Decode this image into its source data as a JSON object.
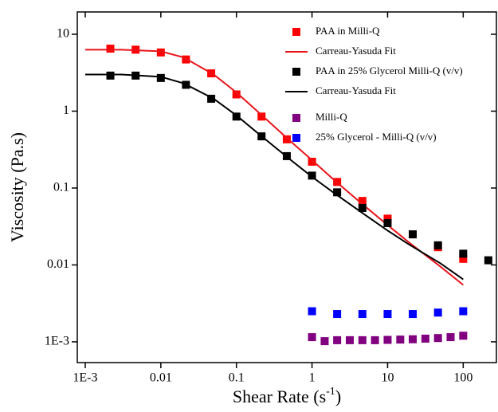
{
  "chart_data": {
    "type": "scatter",
    "log_x": true,
    "log_y": true,
    "xlim": [
      0.000785,
      275
    ],
    "ylim": [
      0.000537,
      19.5
    ],
    "xticks": [
      {
        "value": 0.001,
        "label": "1E-3"
      },
      0.01,
      0.1,
      1,
      10,
      100
    ],
    "yticks": [
      {
        "value": 0.001,
        "label": "1E-3"
      },
      0.01,
      0.1,
      1,
      10
    ],
    "xlabel": {
      "text": "Shear Rate (s",
      "superscript": "-1",
      "suffix": ")"
    },
    "ylabel": "Viscosity (Pa.s)",
    "legend": "upper right",
    "series": [
      {
        "name": "PAA in Milli-Q",
        "style": "marker",
        "color": "#ff0000",
        "x": [
          0.00215,
          0.00464,
          0.01,
          0.0215,
          0.0464,
          0.1,
          0.215,
          0.464,
          1,
          2.15,
          4.64,
          10,
          21.5,
          46.4,
          100
        ],
        "values": [
          6.5,
          6.3,
          5.8,
          4.7,
          3.1,
          1.65,
          0.85,
          0.43,
          0.22,
          0.12,
          0.068,
          0.04,
          0.025,
          0.017,
          0.012
        ]
      },
      {
        "name": "Carreau-Yasuda Fit",
        "style": "line",
        "color": "#e8141a",
        "x": [
          0.001,
          0.003,
          0.01,
          0.02,
          0.05,
          0.1,
          0.2,
          0.5,
          1,
          2,
          5,
          10,
          20,
          50,
          100
        ],
        "values": [
          6.3,
          6.3,
          6.0,
          5.0,
          3.0,
          1.75,
          0.95,
          0.42,
          0.23,
          0.125,
          0.058,
          0.033,
          0.019,
          0.0095,
          0.0055
        ]
      },
      {
        "name": "PAA in 25% Glycerol Milli-Q (v/v)",
        "style": "marker",
        "color": "#000000",
        "x": [
          0.00215,
          0.00464,
          0.01,
          0.0215,
          0.0464,
          0.1,
          0.215,
          0.464,
          1,
          2.15,
          4.64,
          10,
          21.5,
          46.4,
          100,
          215
        ],
        "values": [
          2.9,
          2.9,
          2.7,
          2.2,
          1.45,
          0.85,
          0.47,
          0.26,
          0.145,
          0.088,
          0.055,
          0.035,
          0.025,
          0.018,
          0.014,
          0.0115
        ]
      },
      {
        "name": "Carreau-Yasuda Fit",
        "style": "line",
        "color": "#000000",
        "x": [
          0.001,
          0.003,
          0.01,
          0.02,
          0.05,
          0.1,
          0.2,
          0.5,
          1,
          2,
          5,
          10,
          20,
          50,
          100
        ],
        "values": [
          3.0,
          3.0,
          2.8,
          2.3,
          1.45,
          0.88,
          0.5,
          0.24,
          0.14,
          0.085,
          0.045,
          0.028,
          0.018,
          0.0105,
          0.0065
        ]
      },
      {
        "name": "Milli-Q",
        "style": "marker",
        "color": "#800080",
        "x": [
          1,
          1.47,
          2.15,
          3.16,
          4.64,
          6.81,
          10,
          14.7,
          21.5,
          31.6,
          46.4,
          68.1,
          100
        ],
        "values": [
          0.00115,
          0.00102,
          0.00105,
          0.00105,
          0.00105,
          0.00105,
          0.00106,
          0.00107,
          0.00108,
          0.0011,
          0.00112,
          0.00115,
          0.0012
        ]
      },
      {
        "name": "25% Glycerol - Milli-Q (v/v)",
        "style": "marker",
        "color": "#0000ff",
        "x": [
          1,
          2.15,
          4.64,
          10,
          21.5,
          46.4,
          100
        ],
        "values": [
          0.0025,
          0.0023,
          0.0023,
          0.0023,
          0.0023,
          0.0024,
          0.0025
        ]
      }
    ]
  }
}
